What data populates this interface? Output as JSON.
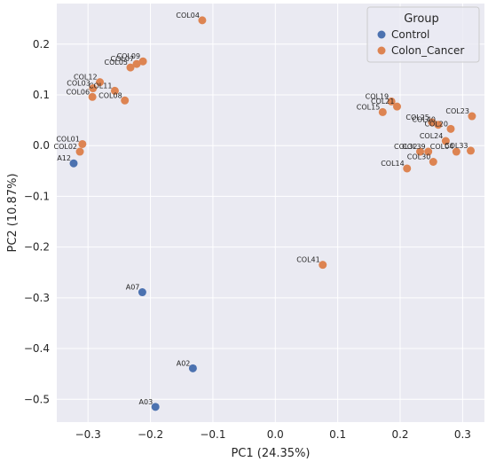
{
  "chart_data": {
    "type": "scatter",
    "xlabel": "PC1 (24.35%)",
    "ylabel": "PC2 (10.87%)",
    "xlim": [
      -0.35,
      0.335
    ],
    "ylim": [
      -0.545,
      0.28
    ],
    "xticks": [
      -0.3,
      -0.2,
      -0.1,
      0.0,
      0.1,
      0.2,
      0.3
    ],
    "yticks": [
      0.2,
      0.1,
      0.0,
      -0.1,
      -0.2,
      -0.3,
      -0.4,
      -0.5
    ],
    "xtick_labels": [
      "−0.3",
      "−0.2",
      "−0.1",
      "0.0",
      "0.1",
      "0.2",
      "0.3"
    ],
    "ytick_labels": [
      "0.2",
      "0.1",
      "0.0",
      "−0.1",
      "−0.2",
      "−0.3",
      "−0.4",
      "−0.5"
    ],
    "grid": true,
    "background": "#eaeaf2",
    "legend": {
      "title": "Group",
      "placement": "top-right"
    },
    "series": [
      {
        "name": "Control",
        "color": "#4c72b0",
        "points": [
          {
            "label": "A12",
            "x": -0.323,
            "y": -0.035
          },
          {
            "label": "A07",
            "x": -0.213,
            "y": -0.289
          },
          {
            "label": "A02",
            "x": -0.132,
            "y": -0.439
          },
          {
            "label": "A03",
            "x": -0.192,
            "y": -0.515
          }
        ]
      },
      {
        "name": "Colon_Cancer",
        "color": "#dd8452",
        "points": [
          {
            "label": "COL04",
            "x": -0.117,
            "y": 0.247
          },
          {
            "label": "COL09",
            "x": -0.212,
            "y": 0.166
          },
          {
            "label": "COL07",
            "x": -0.222,
            "y": 0.161
          },
          {
            "label": "COL05",
            "x": -0.232,
            "y": 0.154
          },
          {
            "label": "COL12",
            "x": -0.281,
            "y": 0.125
          },
          {
            "label": "COL03",
            "x": -0.292,
            "y": 0.113
          },
          {
            "label": "COL11",
            "x": -0.257,
            "y": 0.108
          },
          {
            "label": "COL06",
            "x": -0.293,
            "y": 0.096
          },
          {
            "label": "COL08",
            "x": -0.241,
            "y": 0.089
          },
          {
            "label": "COL01",
            "x": -0.309,
            "y": 0.003
          },
          {
            "label": "COL02",
            "x": -0.313,
            "y": -0.012
          },
          {
            "label": "COL19",
            "x": 0.186,
            "y": 0.087
          },
          {
            "label": "COL21",
            "x": 0.195,
            "y": 0.077
          },
          {
            "label": "COL15",
            "x": 0.172,
            "y": 0.066
          },
          {
            "label": "COL23",
            "x": 0.315,
            "y": 0.058
          },
          {
            "label": "COL25",
            "x": 0.251,
            "y": 0.046
          },
          {
            "label": "COL40",
            "x": 0.261,
            "y": 0.041
          },
          {
            "label": "COL20",
            "x": 0.281,
            "y": 0.033
          },
          {
            "label": "COL24",
            "x": 0.273,
            "y": 0.009
          },
          {
            "label": "COL32",
            "x": 0.232,
            "y": -0.012
          },
          {
            "label": "COL39",
            "x": 0.245,
            "y": -0.012
          },
          {
            "label": "COL04",
            "x": 0.29,
            "y": -0.012
          },
          {
            "label": "COL33",
            "x": 0.313,
            "y": -0.01
          },
          {
            "label": "COL30",
            "x": 0.253,
            "y": -0.032
          },
          {
            "label": "COL14",
            "x": 0.211,
            "y": -0.045
          },
          {
            "label": "COL41",
            "x": 0.076,
            "y": -0.235
          }
        ]
      }
    ]
  }
}
